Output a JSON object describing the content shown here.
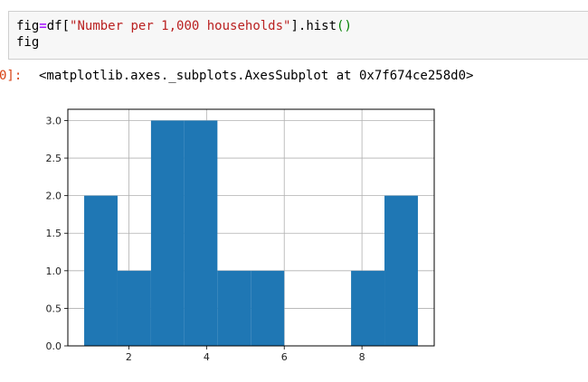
{
  "cell": {
    "line1": {
      "p1": "fig",
      "op": "=",
      "p2": "df[",
      "str": "\"Number per 1,000 households\"",
      "p3": "].hist",
      "paren": "()"
    },
    "line2": "fig"
  },
  "output": {
    "prompt": "0]:",
    "text": "<matplotlib.axes._subplots.AxesSubplot at 0x7f674ce258d0>"
  },
  "colors": {
    "bar": "#1f77b4",
    "grid": "#b0b0b0"
  },
  "chart_data": {
    "type": "bar",
    "bins": [
      {
        "x0": 0.85,
        "x1": 1.71,
        "count": 2
      },
      {
        "x0": 1.71,
        "x1": 2.57,
        "count": 1
      },
      {
        "x0": 2.57,
        "x1": 3.43,
        "count": 3
      },
      {
        "x0": 3.43,
        "x1": 4.28,
        "count": 3
      },
      {
        "x0": 4.28,
        "x1": 5.14,
        "count": 1
      },
      {
        "x0": 5.14,
        "x1": 6.0,
        "count": 1
      },
      {
        "x0": 6.0,
        "x1": 6.86,
        "count": 0
      },
      {
        "x0": 6.86,
        "x1": 7.72,
        "count": 0
      },
      {
        "x0": 7.72,
        "x1": 8.58,
        "count": 1
      },
      {
        "x0": 8.58,
        "x1": 9.44,
        "count": 2
      }
    ],
    "xlim": [
      0.43,
      9.86
    ],
    "ylim": [
      0,
      3.15
    ],
    "xticks": [
      2,
      4,
      6,
      8
    ],
    "yticks": [
      0.0,
      0.5,
      1.0,
      1.5,
      2.0,
      2.5,
      3.0
    ],
    "xtick_labels": [
      "2",
      "4",
      "6",
      "8"
    ],
    "ytick_labels": [
      "0.0",
      "0.5",
      "1.0",
      "1.5",
      "2.0",
      "2.5",
      "3.0"
    ],
    "grid": true,
    "title": "",
    "xlabel": "",
    "ylabel": ""
  }
}
